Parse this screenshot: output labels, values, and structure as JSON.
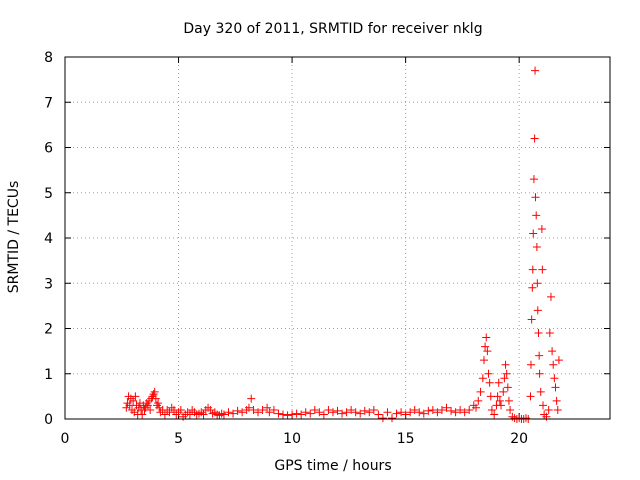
{
  "chart_data": {
    "type": "scatter",
    "title": "Day 320 of 2011, SRMTID for receiver nklg",
    "xlabel": "GPS time / hours",
    "ylabel": "SRMTID / TECUs",
    "xlim": [
      0,
      24
    ],
    "ylim": [
      0,
      8
    ],
    "xticks": [
      0,
      5,
      10,
      15,
      20
    ],
    "yticks": [
      0,
      1,
      2,
      3,
      4,
      5,
      6,
      7,
      8
    ],
    "grid": true,
    "marker": "plus",
    "color": "#ff0000",
    "series": [
      {
        "name": "SRMTID",
        "points": [
          [
            2.7,
            0.25
          ],
          [
            2.75,
            0.35
          ],
          [
            2.8,
            0.5
          ],
          [
            2.85,
            0.3
          ],
          [
            2.9,
            0.45
          ],
          [
            2.95,
            0.2
          ],
          [
            3.0,
            0.4
          ],
          [
            3.05,
            0.15
          ],
          [
            3.1,
            0.5
          ],
          [
            3.15,
            0.3
          ],
          [
            3.2,
            0.1
          ],
          [
            3.25,
            0.25
          ],
          [
            3.3,
            0.35
          ],
          [
            3.35,
            0.2
          ],
          [
            3.4,
            0.1
          ],
          [
            3.45,
            0.3
          ],
          [
            3.5,
            0.2
          ],
          [
            3.55,
            0.25
          ],
          [
            3.6,
            0.35
          ],
          [
            3.65,
            0.3
          ],
          [
            3.7,
            0.4
          ],
          [
            3.75,
            0.2
          ],
          [
            3.8,
            0.45
          ],
          [
            3.85,
            0.5
          ],
          [
            3.9,
            0.55
          ],
          [
            3.95,
            0.6
          ],
          [
            4.0,
            0.45
          ],
          [
            4.05,
            0.3
          ],
          [
            4.1,
            0.35
          ],
          [
            4.15,
            0.25
          ],
          [
            4.2,
            0.15
          ],
          [
            4.3,
            0.2
          ],
          [
            4.4,
            0.1
          ],
          [
            4.5,
            0.2
          ],
          [
            4.6,
            0.15
          ],
          [
            4.7,
            0.25
          ],
          [
            4.8,
            0.2
          ],
          [
            4.9,
            0.1
          ],
          [
            5.0,
            0.15
          ],
          [
            5.1,
            0.2
          ],
          [
            5.2,
            0.05
          ],
          [
            5.3,
            0.1
          ],
          [
            5.4,
            0.15
          ],
          [
            5.5,
            0.1
          ],
          [
            5.6,
            0.2
          ],
          [
            5.7,
            0.15
          ],
          [
            5.8,
            0.1
          ],
          [
            5.9,
            0.12
          ],
          [
            6.0,
            0.15
          ],
          [
            6.1,
            0.1
          ],
          [
            6.2,
            0.2
          ],
          [
            6.3,
            0.25
          ],
          [
            6.4,
            0.2
          ],
          [
            6.5,
            0.12
          ],
          [
            6.6,
            0.15
          ],
          [
            6.7,
            0.1
          ],
          [
            6.8,
            0.08
          ],
          [
            6.9,
            0.12
          ],
          [
            7.0,
            0.1
          ],
          [
            7.2,
            0.15
          ],
          [
            7.4,
            0.12
          ],
          [
            7.6,
            0.18
          ],
          [
            7.8,
            0.15
          ],
          [
            8.0,
            0.2
          ],
          [
            8.1,
            0.25
          ],
          [
            8.2,
            0.45
          ],
          [
            8.3,
            0.2
          ],
          [
            8.5,
            0.15
          ],
          [
            8.7,
            0.2
          ],
          [
            8.9,
            0.25
          ],
          [
            9.0,
            0.15
          ],
          [
            9.2,
            0.2
          ],
          [
            9.4,
            0.12
          ],
          [
            9.6,
            0.1
          ],
          [
            9.8,
            0.08
          ],
          [
            10.0,
            0.1
          ],
          [
            10.2,
            0.12
          ],
          [
            10.4,
            0.1
          ],
          [
            10.6,
            0.15
          ],
          [
            10.8,
            0.12
          ],
          [
            11.0,
            0.2
          ],
          [
            11.2,
            0.15
          ],
          [
            11.4,
            0.1
          ],
          [
            11.6,
            0.2
          ],
          [
            11.8,
            0.15
          ],
          [
            12.0,
            0.18
          ],
          [
            12.2,
            0.12
          ],
          [
            12.4,
            0.15
          ],
          [
            12.6,
            0.2
          ],
          [
            12.8,
            0.15
          ],
          [
            13.0,
            0.12
          ],
          [
            13.2,
            0.18
          ],
          [
            13.4,
            0.15
          ],
          [
            13.6,
            0.2
          ],
          [
            13.8,
            0.1
          ],
          [
            14.0,
            0.02
          ],
          [
            14.2,
            0.15
          ],
          [
            14.4,
            0.02
          ],
          [
            14.6,
            0.12
          ],
          [
            14.8,
            0.15
          ],
          [
            15.0,
            0.1
          ],
          [
            15.2,
            0.15
          ],
          [
            15.4,
            0.2
          ],
          [
            15.6,
            0.15
          ],
          [
            15.8,
            0.12
          ],
          [
            16.0,
            0.18
          ],
          [
            16.2,
            0.2
          ],
          [
            16.4,
            0.15
          ],
          [
            16.6,
            0.2
          ],
          [
            16.8,
            0.25
          ],
          [
            17.0,
            0.18
          ],
          [
            17.2,
            0.15
          ],
          [
            17.4,
            0.2
          ],
          [
            17.6,
            0.15
          ],
          [
            17.8,
            0.2
          ],
          [
            18.0,
            0.3
          ],
          [
            18.1,
            0.25
          ],
          [
            18.2,
            0.4
          ],
          [
            18.3,
            0.6
          ],
          [
            18.4,
            0.9
          ],
          [
            18.45,
            1.3
          ],
          [
            18.5,
            1.6
          ],
          [
            18.55,
            1.8
          ],
          [
            18.6,
            1.5
          ],
          [
            18.65,
            1.0
          ],
          [
            18.7,
            0.8
          ],
          [
            18.75,
            0.5
          ],
          [
            18.8,
            0.2
          ],
          [
            18.9,
            0.1
          ],
          [
            19.0,
            0.3
          ],
          [
            19.05,
            0.5
          ],
          [
            19.1,
            0.8
          ],
          [
            19.15,
            0.4
          ],
          [
            19.2,
            0.3
          ],
          [
            19.3,
            0.6
          ],
          [
            19.35,
            0.9
          ],
          [
            19.4,
            1.2
          ],
          [
            19.45,
            1.0
          ],
          [
            19.5,
            0.7
          ],
          [
            19.55,
            0.4
          ],
          [
            19.6,
            0.2
          ],
          [
            19.7,
            0.05
          ],
          [
            19.8,
            0.02
          ],
          [
            19.9,
            0.0
          ],
          [
            20.0,
            0.02
          ],
          [
            20.1,
            0.0
          ],
          [
            20.2,
            0.0
          ],
          [
            20.3,
            0.02
          ],
          [
            20.4,
            0.0
          ],
          [
            20.5,
            0.5
          ],
          [
            20.52,
            1.2
          ],
          [
            20.55,
            2.2
          ],
          [
            20.58,
            2.9
          ],
          [
            20.6,
            3.3
          ],
          [
            20.62,
            4.1
          ],
          [
            20.65,
            5.3
          ],
          [
            20.68,
            6.2
          ],
          [
            20.7,
            7.7
          ],
          [
            20.72,
            4.9
          ],
          [
            20.75,
            4.5
          ],
          [
            20.78,
            3.8
          ],
          [
            20.8,
            3.0
          ],
          [
            20.82,
            2.4
          ],
          [
            20.85,
            1.9
          ],
          [
            20.88,
            1.4
          ],
          [
            20.9,
            1.0
          ],
          [
            20.95,
            0.6
          ],
          [
            21.0,
            4.2
          ],
          [
            21.02,
            3.3
          ],
          [
            21.05,
            0.3
          ],
          [
            21.1,
            0.1
          ],
          [
            21.2,
            0.05
          ],
          [
            21.3,
            0.2
          ],
          [
            21.35,
            1.9
          ],
          [
            21.4,
            2.7
          ],
          [
            21.45,
            1.5
          ],
          [
            21.5,
            1.2
          ],
          [
            21.55,
            0.9
          ],
          [
            21.6,
            0.7
          ],
          [
            21.65,
            0.4
          ],
          [
            21.7,
            0.2
          ],
          [
            21.75,
            1.3
          ]
        ]
      }
    ]
  }
}
